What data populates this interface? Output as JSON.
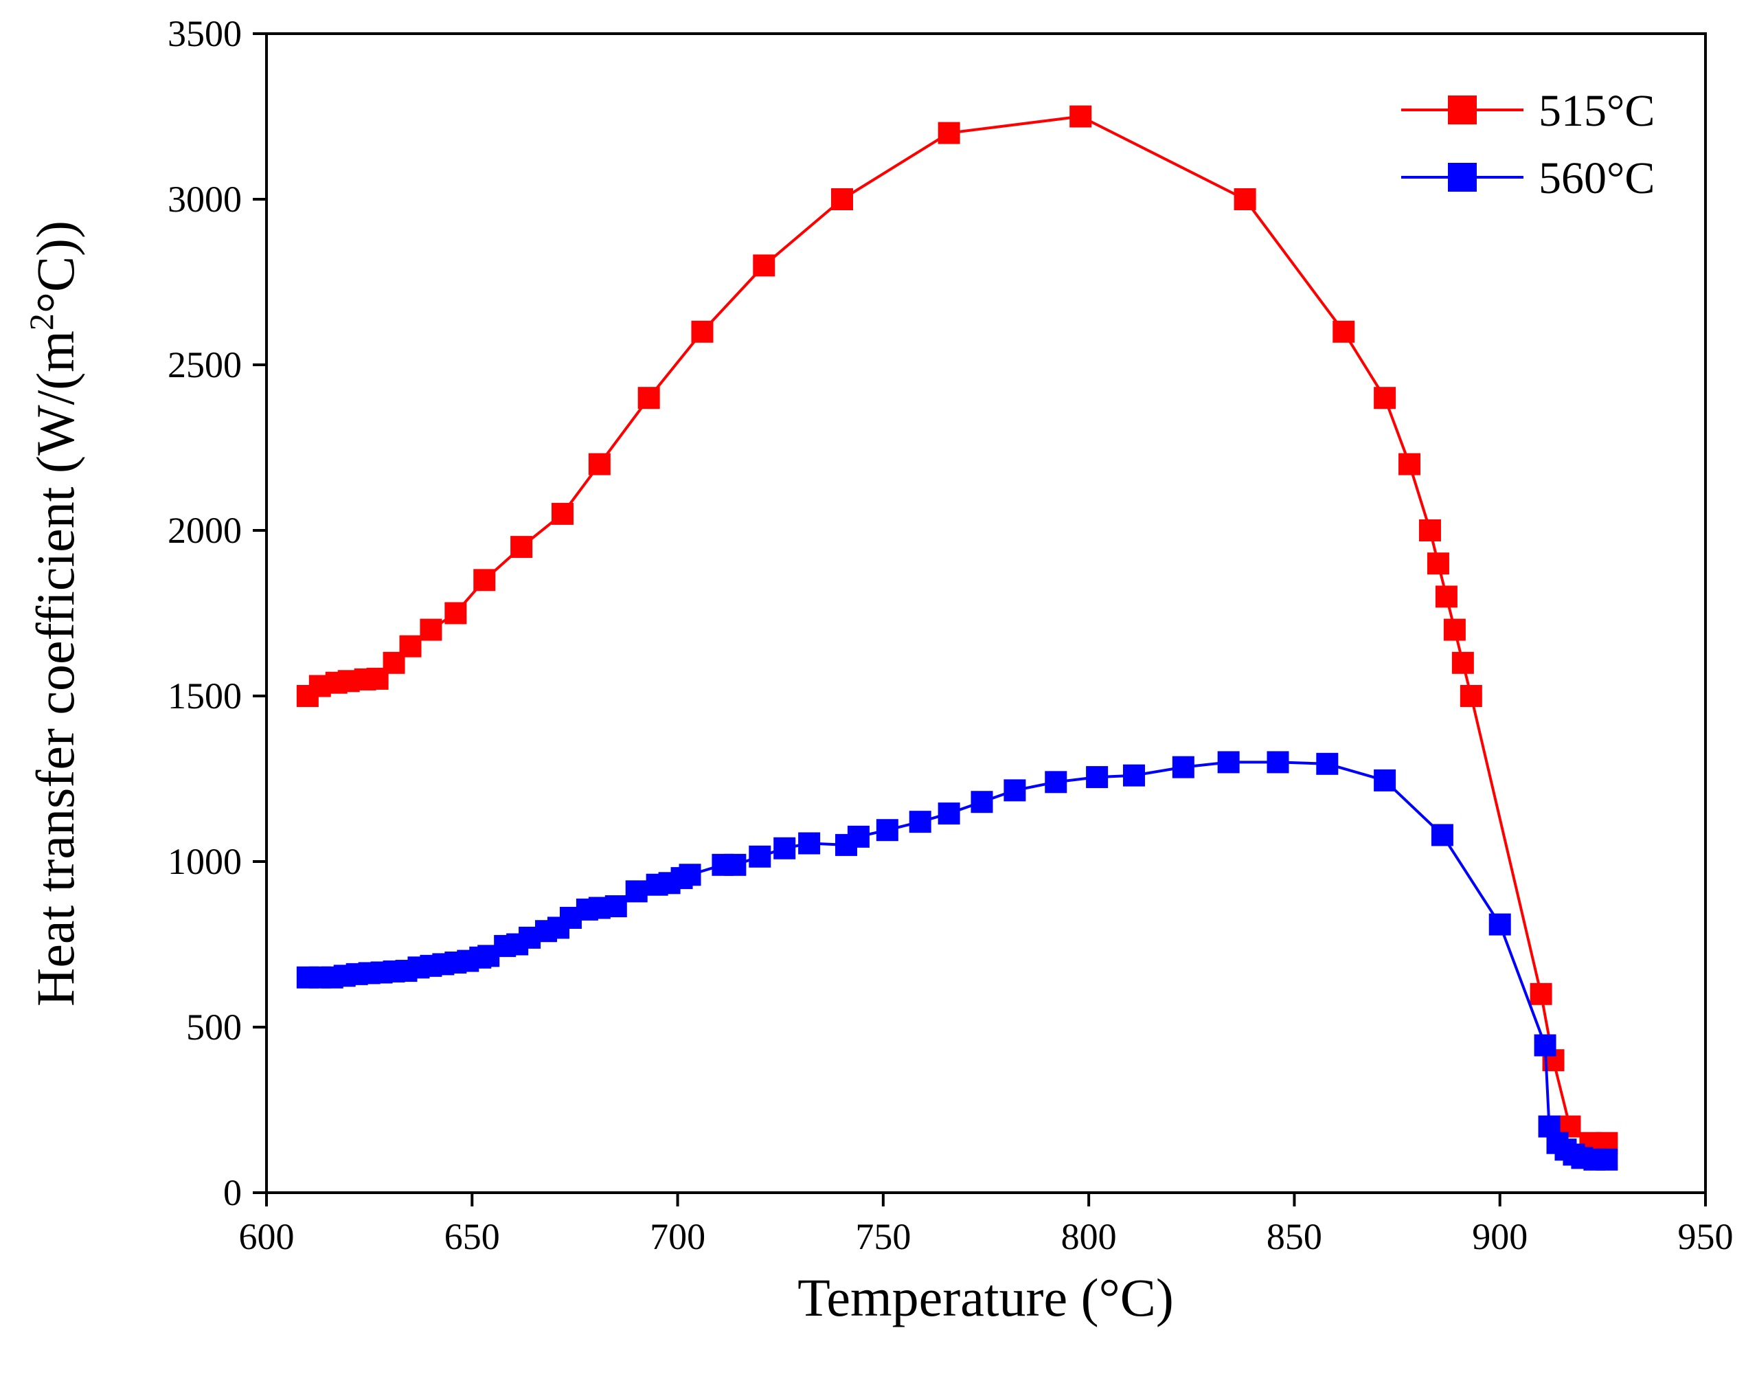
{
  "chart_data": {
    "type": "line",
    "title": "",
    "xlabel": "Temperature (°C)",
    "ylabel": "Heat transfer coefficient (W/(m²°C))",
    "ylabel_parts": {
      "before": "Heat transfer coefficient (W/(m",
      "superscript": "2",
      "after": "°C))"
    },
    "xlim": [
      600,
      950
    ],
    "ylim": [
      0,
      3500
    ],
    "xticks": [
      600,
      650,
      700,
      750,
      800,
      850,
      900,
      950
    ],
    "yticks": [
      0,
      500,
      1000,
      1500,
      2000,
      2500,
      3000,
      3500
    ],
    "grid": false,
    "legend_position": "top-right",
    "marker": "square",
    "series": [
      {
        "name": "515°C",
        "color": "#ff0000",
        "x": [
          610,
          613,
          617,
          620,
          624,
          627,
          631,
          635,
          640,
          646,
          653,
          662,
          672,
          681,
          693,
          706,
          721,
          740,
          766,
          798,
          838,
          862,
          872,
          878,
          883,
          885,
          887,
          889,
          891,
          893,
          910,
          913,
          917,
          922,
          926
        ],
        "y": [
          1500,
          1530,
          1540,
          1545,
          1550,
          1552,
          1600,
          1650,
          1700,
          1750,
          1850,
          1950,
          2050,
          2200,
          2400,
          2600,
          2800,
          3000,
          3200,
          3250,
          3000,
          2600,
          2400,
          2200,
          2000,
          1900,
          1800,
          1700,
          1600,
          1500,
          600,
          400,
          200,
          150,
          150
        ]
      },
      {
        "name": "560°C",
        "color": "#0000ff",
        "x": [
          610,
          613,
          616,
          619,
          622,
          625,
          628,
          631,
          634,
          637,
          640,
          643,
          646,
          649,
          652,
          654,
          658,
          661,
          664,
          668,
          671,
          674,
          678,
          681,
          685,
          690,
          695,
          698,
          701,
          703,
          711,
          714,
          720,
          726,
          732,
          741,
          744,
          751,
          759,
          766,
          774,
          782,
          792,
          802,
          811,
          823,
          834,
          846,
          858,
          872,
          886,
          900,
          911,
          912,
          914,
          916,
          918,
          920,
          923,
          926
        ],
        "y": [
          650,
          650,
          650,
          655,
          660,
          663,
          665,
          668,
          670,
          680,
          685,
          690,
          695,
          700,
          710,
          715,
          745,
          750,
          770,
          790,
          800,
          830,
          855,
          860,
          865,
          910,
          930,
          935,
          950,
          960,
          990,
          990,
          1015,
          1040,
          1055,
          1050,
          1075,
          1095,
          1120,
          1145,
          1180,
          1215,
          1240,
          1255,
          1260,
          1285,
          1300,
          1300,
          1295,
          1245,
          1080,
          810,
          445,
          200,
          150,
          130,
          115,
          105,
          100,
          100
        ]
      }
    ]
  }
}
